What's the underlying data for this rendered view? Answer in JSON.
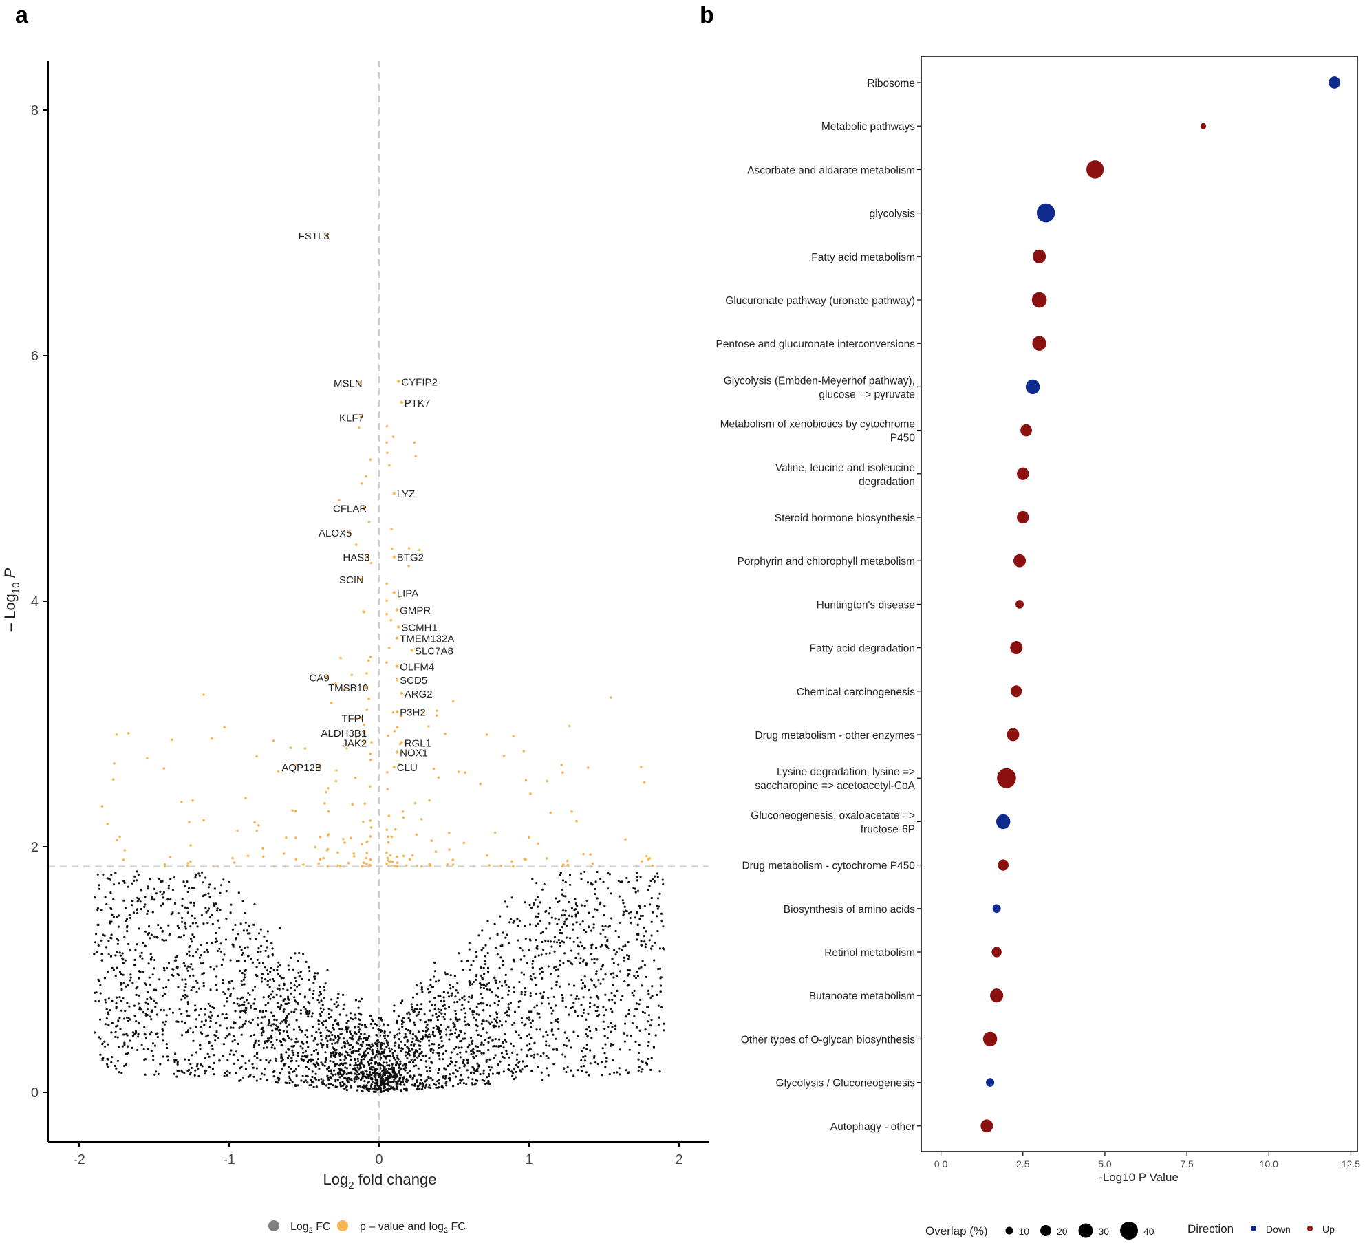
{
  "panel_labels": [
    "a",
    "b"
  ],
  "chart_data": [
    {
      "type": "scatter",
      "subtype": "volcano",
      "xlabel": "Log2 fold change",
      "ylabel": "-Log10 P",
      "xlim": [
        -2.2,
        2.2
      ],
      "ylim": [
        -0.35,
        8.4
      ],
      "xticks": [
        "-2",
        "-1",
        "0",
        "1",
        "2"
      ],
      "yticks": [
        "0",
        "2",
        "4",
        "6",
        "8"
      ],
      "x_tick_values": [
        -2,
        -1,
        0,
        1,
        2
      ],
      "y_tick_values": [
        0,
        2,
        4,
        6,
        8
      ],
      "significance_threshold_y": 1.84,
      "fc_reference_x": 0,
      "grid": false,
      "legend_position": "bottom",
      "legend": [
        {
          "label": "Log2 FC",
          "color": "#808080"
        },
        {
          "label": "p - value and log2 FC",
          "color": "#f7b454"
        }
      ],
      "colors": {
        "nonsignificant": "#111111",
        "significant": "#f7b454"
      },
      "labeled_points": [
        {
          "label": "FSTL3",
          "x": -0.35,
          "y": 6.98
        },
        {
          "label": "MSLN",
          "x": -0.13,
          "y": 5.78
        },
        {
          "label": "CYFIP2",
          "x": 0.13,
          "y": 5.79
        },
        {
          "label": "KLF7",
          "x": -0.12,
          "y": 5.5
        },
        {
          "label": "PTK7",
          "x": 0.15,
          "y": 5.62
        },
        {
          "label": "LYZ",
          "x": 0.1,
          "y": 4.88
        },
        {
          "label": "CFLAR",
          "x": -0.1,
          "y": 4.76
        },
        {
          "label": "ALOX5",
          "x": -0.2,
          "y": 4.56
        },
        {
          "label": "HAS3",
          "x": -0.08,
          "y": 4.36
        },
        {
          "label": "BTG2",
          "x": 0.1,
          "y": 4.36
        },
        {
          "label": "SCIN",
          "x": -0.12,
          "y": 4.18
        },
        {
          "label": "LIPA",
          "x": 0.1,
          "y": 4.07
        },
        {
          "label": "GMPR",
          "x": 0.12,
          "y": 3.93
        },
        {
          "label": "SCMH1",
          "x": 0.13,
          "y": 3.79
        },
        {
          "label": "TMEM132A",
          "x": 0.12,
          "y": 3.7
        },
        {
          "label": "SLC7A8",
          "x": 0.22,
          "y": 3.6
        },
        {
          "label": "OLFM4",
          "x": 0.12,
          "y": 3.47
        },
        {
          "label": "CA9",
          "x": -0.35,
          "y": 3.38
        },
        {
          "label": "SCD5",
          "x": 0.12,
          "y": 3.36
        },
        {
          "label": "TMSB10",
          "x": -0.09,
          "y": 3.3
        },
        {
          "label": "ARG2",
          "x": 0.15,
          "y": 3.25
        },
        {
          "label": "P3H2",
          "x": 0.12,
          "y": 3.1
        },
        {
          "label": "TFPI",
          "x": -0.12,
          "y": 3.05
        },
        {
          "label": "ALDH3B1",
          "x": -0.1,
          "y": 2.93
        },
        {
          "label": "JAK2",
          "x": -0.1,
          "y": 2.85
        },
        {
          "label": "RGL1",
          "x": 0.15,
          "y": 2.85
        },
        {
          "label": "NOX1",
          "x": 0.12,
          "y": 2.77
        },
        {
          "label": "AQP12B",
          "x": -0.4,
          "y": 2.65
        },
        {
          "label": "CLU",
          "x": 0.1,
          "y": 2.65
        }
      ]
    },
    {
      "type": "scatter",
      "subtype": "dot",
      "xlabel": "-Log10 P Value",
      "xlim": [
        -0.6,
        12.7
      ],
      "xticks": [
        "0.0",
        "2.5",
        "5.0",
        "7.5",
        "10.0",
        "12.5"
      ],
      "x_tick_values": [
        0,
        2.5,
        5,
        7.5,
        10,
        12.5
      ],
      "grid": false,
      "colors": {
        "Down": "#0e2a8c",
        "Up": "#8b1010"
      },
      "size_legend": {
        "title": "Overlap (%)",
        "values": [
          "10",
          "20",
          "30",
          "40"
        ]
      },
      "color_legend": {
        "title": "Direction",
        "values": [
          "Down",
          "Up"
        ]
      },
      "legend_position": "bottom",
      "pathways": [
        {
          "name": [
            "Ribosome"
          ],
          "value": 12.0,
          "direction": "Down",
          "overlap": 18
        },
        {
          "name": [
            "Metabolic pathways"
          ],
          "value": 8.0,
          "direction": "Up",
          "overlap": 4
        },
        {
          "name": [
            "Ascorbate and aldarate metabolism"
          ],
          "value": 4.7,
          "direction": "Up",
          "overlap": 32
        },
        {
          "name": [
            "glycolysis"
          ],
          "value": 3.2,
          "direction": "Down",
          "overlap": 34
        },
        {
          "name": [
            "Fatty acid metabolism"
          ],
          "value": 3.0,
          "direction": "Up",
          "overlap": 22
        },
        {
          "name": [
            "Glucuronate pathway (uronate pathway)"
          ],
          "value": 3.0,
          "direction": "Up",
          "overlap": 26
        },
        {
          "name": [
            "Pentose and glucuronate interconversions"
          ],
          "value": 3.0,
          "direction": "Up",
          "overlap": 24
        },
        {
          "name": [
            "Glycolysis (Embden-Meyerhof pathway),",
            "glucose => pyruvate"
          ],
          "value": 2.8,
          "direction": "Down",
          "overlap": 24
        },
        {
          "name": [
            "Metabolism of xenobiotics by cytochrome",
            "P450"
          ],
          "value": 2.6,
          "direction": "Up",
          "overlap": 18
        },
        {
          "name": [
            "Valine, leucine and isoleucine",
            "degradation"
          ],
          "value": 2.5,
          "direction": "Up",
          "overlap": 19
        },
        {
          "name": [
            "Steroid hormone biosynthesis"
          ],
          "value": 2.5,
          "direction": "Up",
          "overlap": 19
        },
        {
          "name": [
            "Porphyrin and chlorophyll metabolism"
          ],
          "value": 2.4,
          "direction": "Up",
          "overlap": 20
        },
        {
          "name": [
            "Huntington's disease"
          ],
          "value": 2.4,
          "direction": "Up",
          "overlap": 10
        },
        {
          "name": [
            "Fatty acid degradation"
          ],
          "value": 2.3,
          "direction": "Up",
          "overlap": 20
        },
        {
          "name": [
            "Chemical carcinogenesis"
          ],
          "value": 2.3,
          "direction": "Up",
          "overlap": 17
        },
        {
          "name": [
            "Drug metabolism - other enzymes"
          ],
          "value": 2.2,
          "direction": "Up",
          "overlap": 20
        },
        {
          "name": [
            "Lysine degradation, lysine =>",
            "saccharopine => acetoacetyl-CoA"
          ],
          "value": 2.0,
          "direction": "Up",
          "overlap": 36
        },
        {
          "name": [
            "Gluconeogenesis, oxaloacetate =>",
            "fructose-6P"
          ],
          "value": 1.9,
          "direction": "Down",
          "overlap": 24
        },
        {
          "name": [
            "Drug metabolism - cytochrome P450"
          ],
          "value": 1.9,
          "direction": "Up",
          "overlap": 16
        },
        {
          "name": [
            "Biosynthesis of amino acids"
          ],
          "value": 1.7,
          "direction": "Down",
          "overlap": 10
        },
        {
          "name": [
            "Retinol metabolism"
          ],
          "value": 1.7,
          "direction": "Up",
          "overlap": 14
        },
        {
          "name": [
            "Butanoate metabolism"
          ],
          "value": 1.7,
          "direction": "Up",
          "overlap": 22
        },
        {
          "name": [
            "Other types of O-glycan biosynthesis"
          ],
          "value": 1.5,
          "direction": "Up",
          "overlap": 24
        },
        {
          "name": [
            "Glycolysis / Gluconeogenesis"
          ],
          "value": 1.5,
          "direction": "Down",
          "overlap": 10
        },
        {
          "name": [
            "Autophagy - other"
          ],
          "value": 1.4,
          "direction": "Up",
          "overlap": 20
        }
      ]
    }
  ]
}
